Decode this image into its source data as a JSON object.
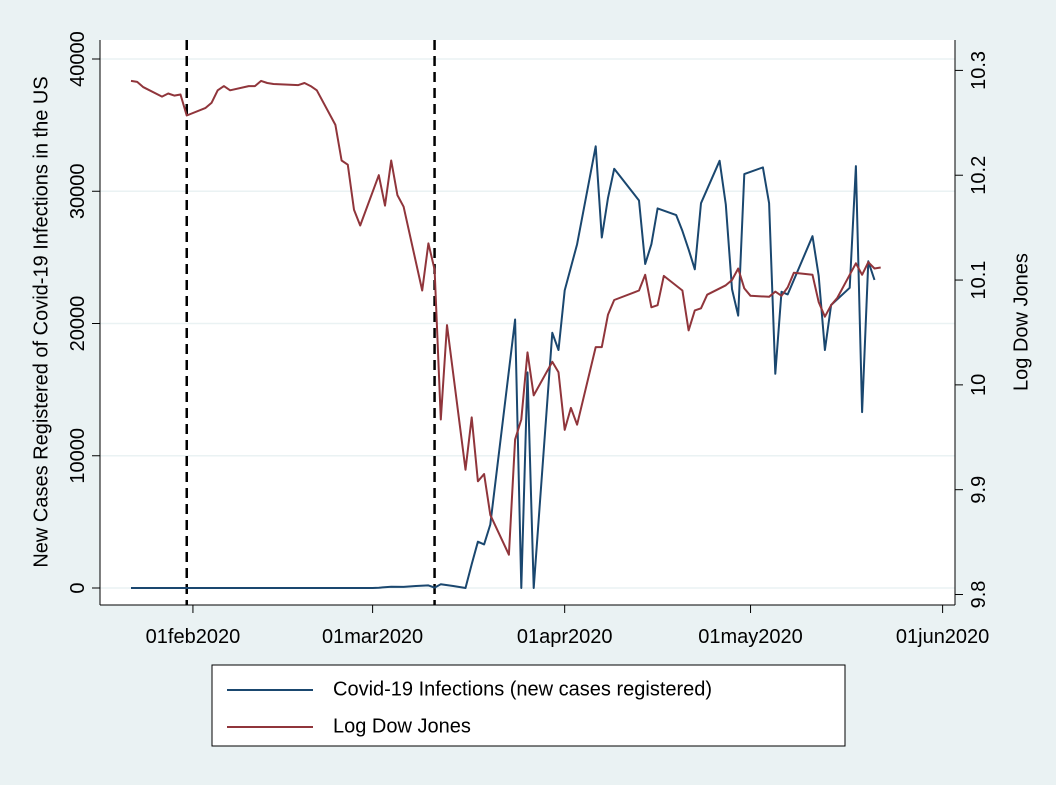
{
  "chart_data": {
    "type": "line",
    "ylabel": "New Cases Registered of Covid-19 Infections in the US",
    "y2label": "Log Dow Jones",
    "xlim": [
      "2020-01-17",
      "2020-06-03"
    ],
    "xticks": [
      {
        "value": "2020-02-01",
        "label": "01feb2020"
      },
      {
        "value": "2020-03-01",
        "label": "01mar2020"
      },
      {
        "value": "2020-04-01",
        "label": "01apr2020"
      },
      {
        "value": "2020-05-01",
        "label": "01may2020"
      },
      {
        "value": "2020-06-01",
        "label": "01jun2020"
      }
    ],
    "ylim": [
      -1285,
      41437
    ],
    "yticks": [
      0,
      10000,
      20000,
      30000,
      40000
    ],
    "y2lim": [
      9.79,
      10.329
    ],
    "y2ticks": [
      9.8,
      9.9,
      10,
      10.1,
      10.2,
      10.3
    ],
    "grid": true,
    "vlines": [
      "2020-01-31",
      "2020-03-11"
    ],
    "series": [
      {
        "name": "Covid-19 Infections (new cases registered)",
        "color": "#1a476f",
        "x": [
          "2020-01-22",
          "2020-02-01",
          "2020-02-15",
          "2020-03-01",
          "2020-03-02",
          "2020-03-04",
          "2020-03-06",
          "2020-03-08",
          "2020-03-10",
          "2020-03-11",
          "2020-03-12",
          "2020-03-14",
          "2020-03-16",
          "2020-03-17",
          "2020-03-18",
          "2020-03-19",
          "2020-03-20",
          "2020-03-24",
          "2020-03-25",
          "2020-03-26",
          "2020-03-27",
          "2020-03-30",
          "2020-03-31",
          "2020-04-01",
          "2020-04-03",
          "2020-04-06",
          "2020-04-07",
          "2020-04-08",
          "2020-04-09",
          "2020-04-13",
          "2020-04-14",
          "2020-04-15",
          "2020-04-16",
          "2020-04-19",
          "2020-04-20",
          "2020-04-21",
          "2020-04-22",
          "2020-04-23",
          "2020-04-26",
          "2020-04-27",
          "2020-04-28",
          "2020-04-29",
          "2020-04-30",
          "2020-05-03",
          "2020-05-04",
          "2020-05-05",
          "2020-05-06",
          "2020-05-07",
          "2020-05-11",
          "2020-05-12",
          "2020-05-13",
          "2020-05-14",
          "2020-05-17",
          "2020-05-18",
          "2020-05-19",
          "2020-05-20",
          "2020-05-21"
        ],
        "values": [
          0,
          0,
          0,
          0,
          20,
          100,
          80,
          150,
          200,
          30,
          280,
          150,
          0,
          1800,
          3500,
          3300,
          4800,
          20300,
          0,
          16300,
          0,
          19300,
          18000,
          22500,
          26000,
          33400,
          26500,
          29500,
          31700,
          29300,
          24500,
          26000,
          28700,
          28200,
          27000,
          25600,
          24100,
          29100,
          32300,
          29000,
          22600,
          20600,
          31300,
          31800,
          29100,
          16200,
          22400,
          22200,
          26600,
          23600,
          18000,
          21400,
          22700,
          31900,
          13300,
          24700,
          23300
        ]
      },
      {
        "name": "Log Dow Jones",
        "color": "#90353b",
        "axis": "y2",
        "x": [
          "2020-01-22",
          "2020-01-23",
          "2020-01-24",
          "2020-01-27",
          "2020-01-28",
          "2020-01-29",
          "2020-01-30",
          "2020-01-31",
          "2020-02-03",
          "2020-02-04",
          "2020-02-05",
          "2020-02-06",
          "2020-02-07",
          "2020-02-10",
          "2020-02-11",
          "2020-02-12",
          "2020-02-13",
          "2020-02-14",
          "2020-02-18",
          "2020-02-19",
          "2020-02-20",
          "2020-02-21",
          "2020-02-24",
          "2020-02-25",
          "2020-02-26",
          "2020-02-27",
          "2020-02-28",
          "2020-03-02",
          "2020-03-03",
          "2020-03-04",
          "2020-03-05",
          "2020-03-06",
          "2020-03-09",
          "2020-03-10",
          "2020-03-11",
          "2020-03-12",
          "2020-03-13",
          "2020-03-16",
          "2020-03-17",
          "2020-03-18",
          "2020-03-19",
          "2020-03-20",
          "2020-03-23",
          "2020-03-24",
          "2020-03-25",
          "2020-03-26",
          "2020-03-27",
          "2020-03-30",
          "2020-03-31",
          "2020-04-01",
          "2020-04-02",
          "2020-04-03",
          "2020-04-06",
          "2020-04-07",
          "2020-04-08",
          "2020-04-09",
          "2020-04-13",
          "2020-04-14",
          "2020-04-15",
          "2020-04-16",
          "2020-04-17",
          "2020-04-20",
          "2020-04-21",
          "2020-04-22",
          "2020-04-23",
          "2020-04-24",
          "2020-04-27",
          "2020-04-28",
          "2020-04-29",
          "2020-04-30",
          "2020-05-01",
          "2020-05-04",
          "2020-05-05",
          "2020-05-06",
          "2020-05-07",
          "2020-05-08",
          "2020-05-11",
          "2020-05-12",
          "2020-05-13",
          "2020-05-14",
          "2020-05-15",
          "2020-05-18",
          "2020-05-19",
          "2020-05-20",
          "2020-05-21",
          "2020-05-22"
        ],
        "values": [
          10.29,
          10.289,
          10.284,
          10.275,
          10.278,
          10.276,
          10.277,
          10.257,
          10.264,
          10.269,
          10.281,
          10.285,
          10.281,
          10.285,
          10.285,
          10.29,
          10.288,
          10.287,
          10.286,
          10.288,
          10.285,
          10.281,
          10.248,
          10.214,
          10.21,
          10.167,
          10.152,
          10.2,
          10.171,
          10.214,
          10.181,
          10.17,
          10.09,
          10.135,
          10.11,
          9.967,
          10.057,
          9.919,
          9.969,
          9.908,
          9.915,
          9.876,
          9.838,
          9.948,
          9.967,
          10.031,
          9.99,
          10.022,
          10.012,
          9.957,
          9.978,
          9.962,
          10.036,
          10.036,
          10.067,
          10.081,
          10.09,
          10.105,
          10.074,
          10.076,
          10.104,
          10.09,
          10.052,
          10.071,
          10.073,
          10.086,
          10.095,
          10.1,
          10.111,
          10.092,
          10.085,
          10.084,
          10.089,
          10.085,
          10.093,
          10.107,
          10.105,
          10.079,
          10.065,
          10.076,
          10.083,
          10.116,
          10.105,
          10.117,
          10.111,
          10.112
        ]
      }
    ]
  }
}
